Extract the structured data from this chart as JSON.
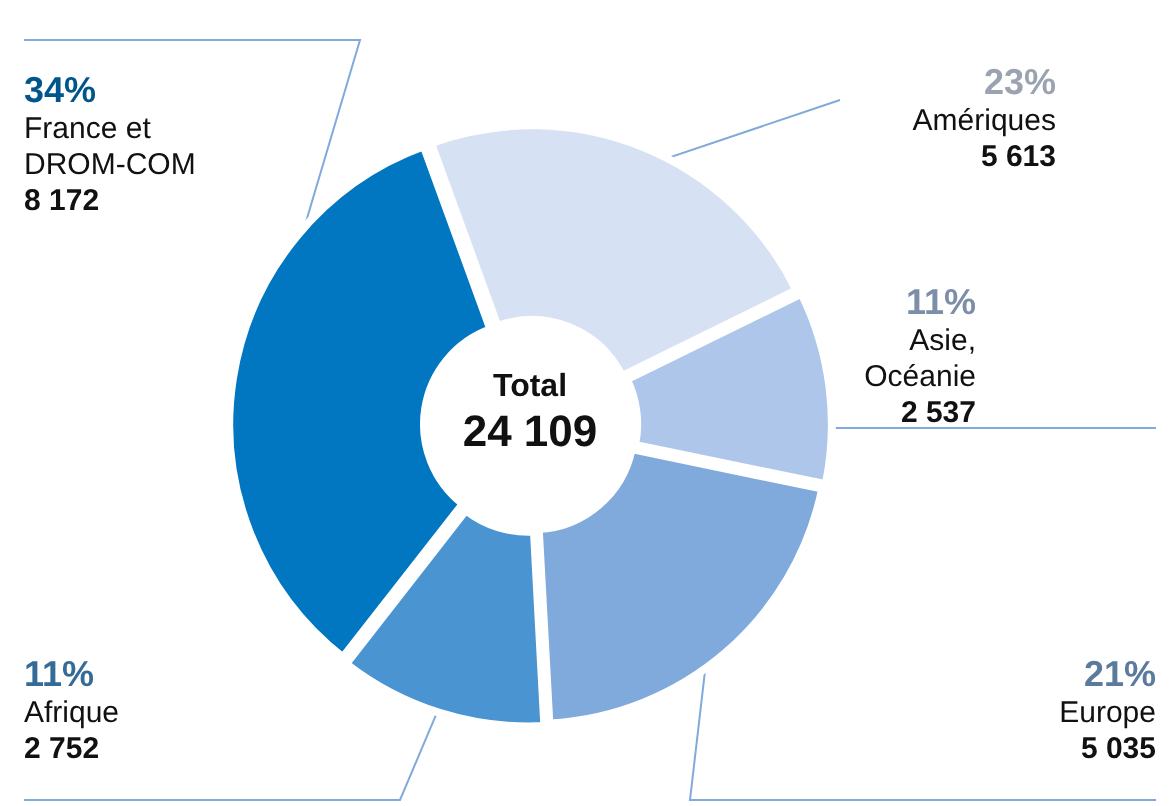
{
  "chart_data": {
    "type": "donut",
    "categories": [
      "Amériques",
      "Asie, Océanie",
      "Europe",
      "Afrique",
      "France et DROM-COM"
    ],
    "values": [
      5613,
      2537,
      5035,
      2752,
      8172
    ],
    "colors": [
      "#d6e2f3",
      "#adc6ea",
      "#7faadb",
      "#4a94d2",
      "#0077c0"
    ],
    "value_labels": [
      "5 613",
      "2 537",
      "5 035",
      "2 752",
      "8 172"
    ],
    "annotations": [
      {
        "text": "23%",
        "x": "Amériques"
      },
      {
        "text": "11%",
        "x": "Asie, Océanie"
      },
      {
        "text": "21%",
        "x": "Europe"
      },
      {
        "text": "11%",
        "x": "Afrique"
      },
      {
        "text": "34%",
        "x": "France et DROM-COM"
      },
      "Total",
      "24 109"
    ],
    "legend": false
  }
}
